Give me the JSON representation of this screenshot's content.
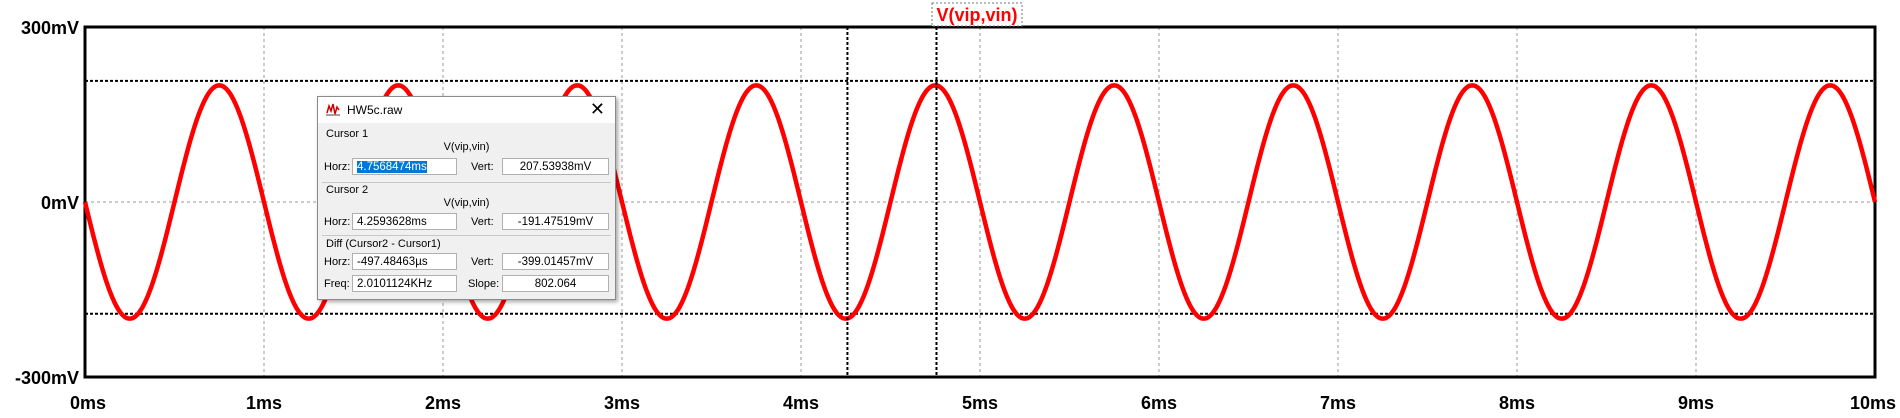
{
  "chart_data": {
    "type": "line",
    "title": "V(vip,vin)",
    "xlabel": "",
    "ylabel": "",
    "x_ticks": [
      "0ms",
      "1ms",
      "2ms",
      "3ms",
      "4ms",
      "5ms",
      "6ms",
      "7ms",
      "8ms",
      "9ms",
      "10ms"
    ],
    "y_ticks": [
      "300mV",
      "0mV",
      "-300mV"
    ],
    "xlim_ms": [
      0,
      10
    ],
    "ylim_mV": [
      -300,
      300
    ],
    "grid": true,
    "series": [
      {
        "name": "V(vip,vin)",
        "color": "#ff0000",
        "waveform": "sine",
        "amplitude_mV": 200,
        "frequency_kHz": 1,
        "phase": "starts at 0 mV going negative",
        "x_ms": [
          0,
          0.25,
          0.5,
          0.75,
          1,
          1.25,
          1.5,
          1.75,
          2,
          2.25,
          2.5,
          2.75,
          3,
          3.25,
          3.5,
          3.75,
          4,
          4.25,
          4.5,
          4.75,
          5,
          5.25,
          5.5,
          5.75,
          6,
          6.25,
          6.5,
          6.75,
          7,
          7.25,
          7.5,
          7.75,
          8,
          8.25,
          8.5,
          8.75,
          9,
          9.25,
          9.5,
          9.75,
          10
        ],
        "y_mV": [
          0,
          -200,
          0,
          200,
          0,
          -200,
          0,
          200,
          0,
          -200,
          0,
          200,
          0,
          -200,
          0,
          200,
          0,
          -200,
          0,
          200,
          0,
          -200,
          0,
          200,
          0,
          -200,
          0,
          200,
          0,
          -200,
          0,
          200,
          0,
          -200,
          0,
          200,
          0,
          -200,
          0,
          200,
          0
        ]
      }
    ],
    "cursors": [
      {
        "name": "Cursor 1",
        "x_ms": 4.7568474,
        "y_mV": 207.53938
      },
      {
        "name": "Cursor 2",
        "x_ms": 4.2593628,
        "y_mV": -191.47519
      }
    ]
  },
  "dialog": {
    "title": "HW5c.raw",
    "close_glyph": "✕",
    "cursor1": {
      "label": "Cursor 1",
      "signal": "V(vip,vin)",
      "horz_label": "Horz:",
      "horz": "4.7568474ms",
      "vert_label": "Vert:",
      "vert": "207.53938mV"
    },
    "cursor2": {
      "label": "Cursor 2",
      "signal": "V(vip,vin)",
      "horz_label": "Horz:",
      "horz": "4.2593628ms",
      "vert_label": "Vert:",
      "vert": "-191.47519mV"
    },
    "diff": {
      "label": "Diff (Cursor2 - Cursor1)",
      "horz_label": "Horz:",
      "horz": "-497.48463µs",
      "vert_label": "Vert:",
      "vert": "-399.01457mV",
      "freq_label": "Freq:",
      "freq": "2.0101124KHz",
      "slope_label": "Slope:",
      "slope": "802.064"
    }
  },
  "colors": {
    "trace": "#ff0000",
    "grid": "#9a9a9a",
    "frame": "#000000",
    "selection": "#0078d7"
  }
}
